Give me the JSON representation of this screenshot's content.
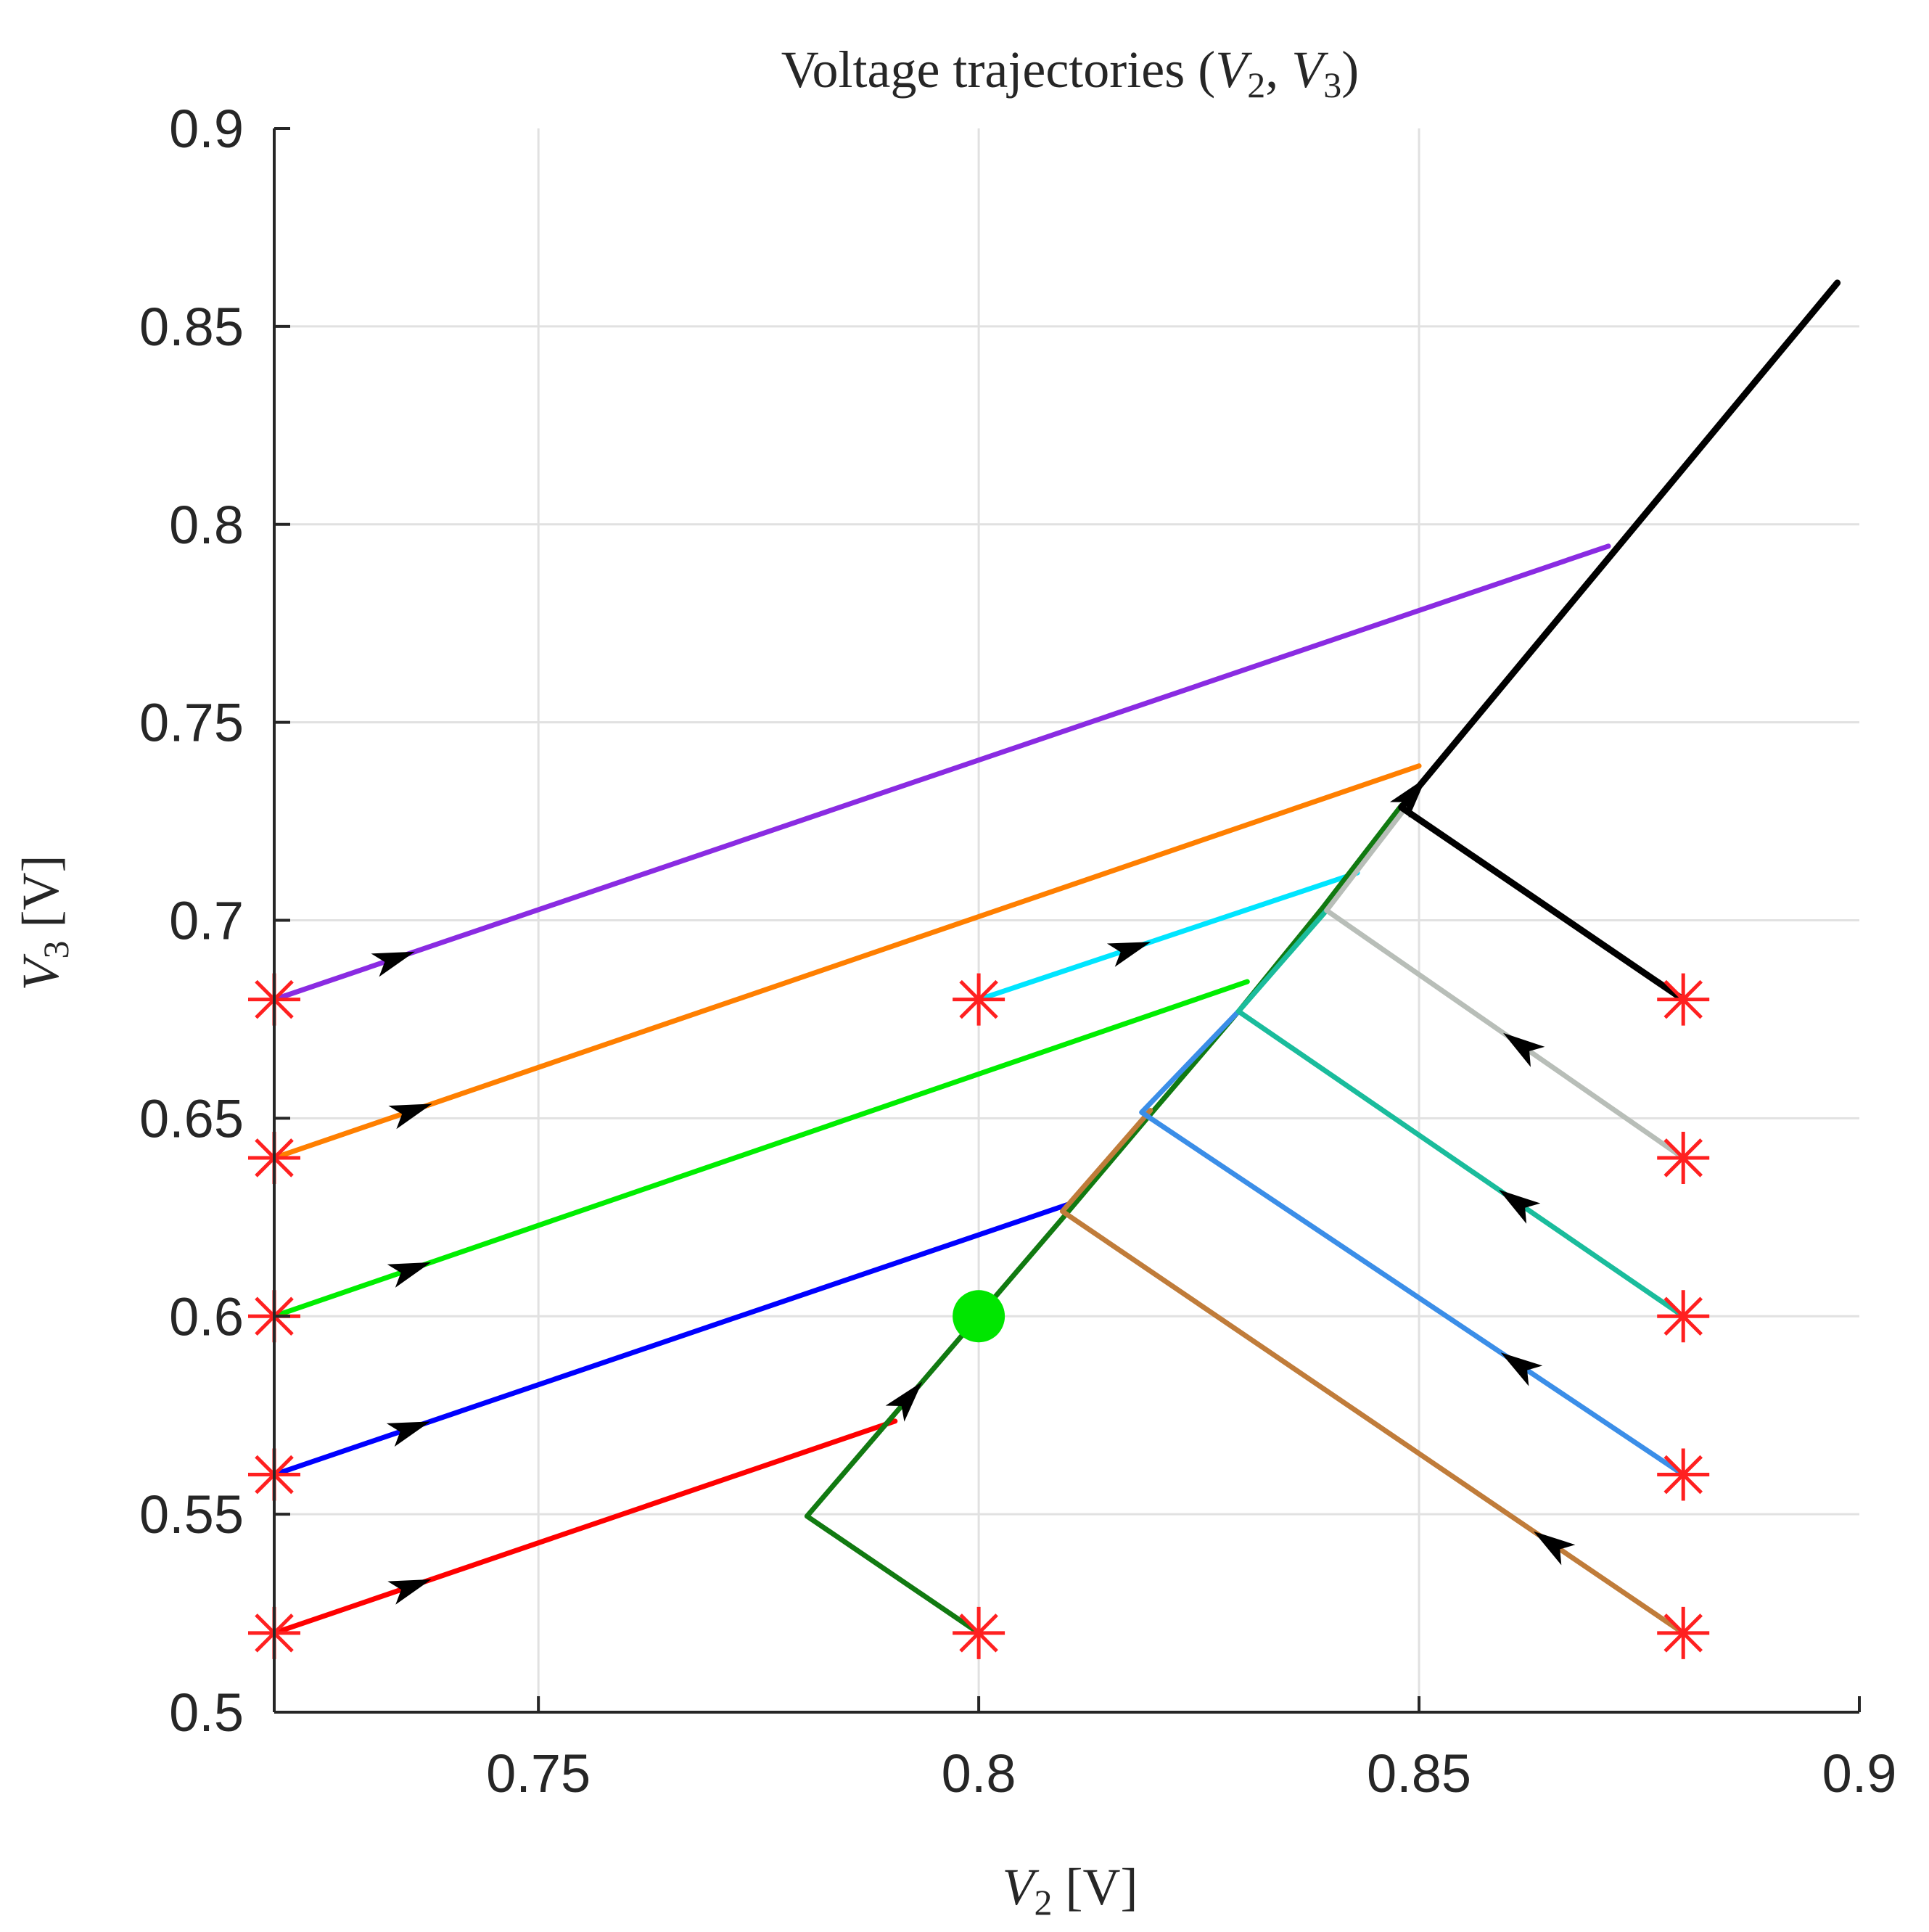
{
  "chart_data": {
    "type": "line",
    "title": {
      "prefix": "Voltage trajectories (",
      "v1": "V",
      "v1_sub": "2",
      "sep": ", ",
      "v2": "V",
      "v2_sub": "3",
      "suffix": ")"
    },
    "xlabel": {
      "var": "V",
      "sub": "2",
      "unit": " [V]"
    },
    "ylabel": {
      "var": "V",
      "sub": "3",
      "unit": " [V]"
    },
    "xlim": [
      0.72,
      0.9
    ],
    "ylim": [
      0.5,
      0.9
    ],
    "xticks": [
      0.75,
      0.8,
      0.85,
      0.9
    ],
    "xtick_labels": [
      "0.75",
      "0.8",
      "0.85",
      "0.9"
    ],
    "yticks": [
      0.5,
      0.55,
      0.6,
      0.65,
      0.7,
      0.75,
      0.8,
      0.85,
      0.9
    ],
    "ytick_labels": [
      "0.5",
      "0.55",
      "0.6",
      "0.65",
      "0.7",
      "0.75",
      "0.8",
      "0.85",
      "0.9"
    ],
    "grid": true,
    "series": [
      {
        "name": "purple",
        "color": "#8a2be2",
        "points": [
          [
            0.72,
            0.68
          ],
          [
            0.8715,
            0.7945
          ]
        ],
        "arrow_at": 0.09
      },
      {
        "name": "orange",
        "color": "#ff7f00",
        "points": [
          [
            0.72,
            0.64
          ],
          [
            0.85,
            0.739
          ]
        ],
        "arrow_at": 0.12
      },
      {
        "name": "cyan",
        "color": "#00e5ff",
        "points": [
          [
            0.8,
            0.68
          ],
          [
            0.843,
            0.712
          ]
        ],
        "arrow_at": 0.4
      },
      {
        "name": "green",
        "color": "#00ee00",
        "points": [
          [
            0.72,
            0.6
          ],
          [
            0.8305,
            0.6845
          ]
        ],
        "arrow_at": 0.14
      },
      {
        "name": "blue",
        "color": "#0000ff",
        "points": [
          [
            0.72,
            0.56
          ],
          [
            0.8105,
            0.6285
          ]
        ],
        "arrow_at": 0.17
      },
      {
        "name": "red",
        "color": "#ff0000",
        "points": [
          [
            0.72,
            0.52
          ],
          [
            0.7905,
            0.5735
          ]
        ],
        "arrow_at": 0.22
      },
      {
        "name": "dark green",
        "color": "#117a11",
        "points": [
          [
            0.8,
            0.52
          ],
          [
            0.7805,
            0.5495
          ],
          [
            0.81,
            0.626
          ],
          [
            0.8195,
            0.651
          ],
          [
            0.8295,
            0.677
          ],
          [
            0.839,
            0.703
          ],
          [
            0.848,
            0.729
          ]
        ],
        "arrow_at": 0.32
      },
      {
        "name": "brown",
        "color": "#c07c3a",
        "points": [
          [
            0.88,
            0.52
          ],
          [
            0.8095,
            0.6265
          ],
          [
            0.8195,
            0.652
          ]
        ],
        "arrow_at": 0.18
      },
      {
        "name": "light blue",
        "color": "#3b8ee8",
        "points": [
          [
            0.88,
            0.56
          ],
          [
            0.8185,
            0.6515
          ],
          [
            0.8295,
            0.677
          ]
        ],
        "arrow_at": 0.25
      },
      {
        "name": "teal",
        "color": "#1abc9c",
        "points": [
          [
            0.88,
            0.6
          ],
          [
            0.8295,
            0.677
          ],
          [
            0.8395,
            0.7025
          ]
        ],
        "arrow_at": 0.3
      },
      {
        "name": "gray",
        "color": "#b8beb8",
        "points": [
          [
            0.88,
            0.64
          ],
          [
            0.8395,
            0.7025
          ],
          [
            0.8485,
            0.7285
          ]
        ],
        "arrow_at": 0.35
      },
      {
        "name": "black",
        "color": "#000000",
        "points": [
          [
            0.88,
            0.68
          ],
          [
            0.848,
            0.7285
          ],
          [
            0.8975,
            0.861
          ]
        ],
        "arrow_at": 0.35
      }
    ],
    "start_markers": [
      [
        0.72,
        0.68
      ],
      [
        0.72,
        0.64
      ],
      [
        0.72,
        0.6
      ],
      [
        0.72,
        0.56
      ],
      [
        0.72,
        0.52
      ],
      [
        0.8,
        0.68
      ],
      [
        0.8,
        0.52
      ],
      [
        0.88,
        0.68
      ],
      [
        0.88,
        0.64
      ],
      [
        0.88,
        0.6
      ],
      [
        0.88,
        0.56
      ],
      [
        0.88,
        0.52
      ]
    ],
    "start_marker_color": "#ff2020",
    "equilibrium": {
      "point": [
        0.8,
        0.6
      ],
      "color": "#00e600"
    }
  }
}
